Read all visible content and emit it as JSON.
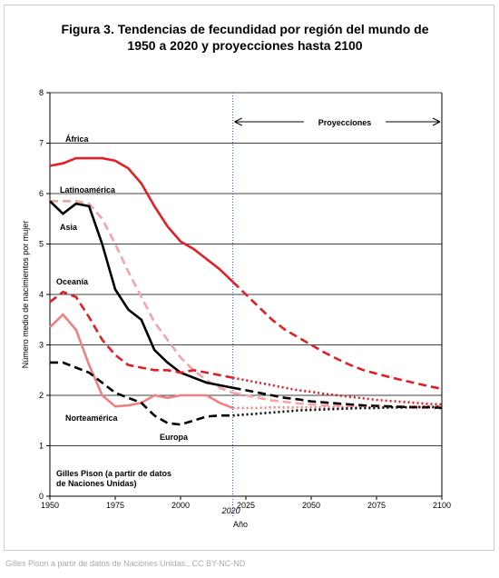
{
  "chart_data": {
    "type": "line",
    "title": [
      "Figura 3. Tendencias de fecundidad por región del mundo de",
      "1950 a 2020 y proyecciones hasta 2100"
    ],
    "y_label": "Número medio de nacimientos por mujer",
    "x_label": "Año",
    "source_note": [
      "Gilles Pison (a partir de datos",
      "de Naciones Unidas)"
    ],
    "projection_label": "Proyecciones",
    "marker_x": 2020,
    "caption": "Gilles Pison a partir de datos de Naciones Unidas., CC BY-NC-ND",
    "xlim": [
      1950,
      2100
    ],
    "xticks": [
      1950,
      1975,
      2000,
      2025,
      2050,
      2075,
      2100
    ],
    "ylim": [
      0,
      8
    ],
    "yticks": [
      0,
      1,
      2,
      3,
      4,
      5,
      6,
      7,
      8
    ],
    "grid": true,
    "x": [
      1950,
      1955,
      1960,
      1965,
      1970,
      1975,
      1980,
      1985,
      1990,
      1995,
      2000,
      2005,
      2010,
      2015,
      2020,
      2025,
      2030,
      2035,
      2040,
      2045,
      2050,
      2055,
      2060,
      2065,
      2070,
      2075,
      2080,
      2085,
      2090,
      2095,
      2100
    ],
    "series": [
      {
        "name": "África",
        "color": "#e41e26",
        "dash": "solid",
        "projection_dash": "dashed",
        "values": [
          6.55,
          6.6,
          6.7,
          6.7,
          6.7,
          6.65,
          6.5,
          6.2,
          5.75,
          5.35,
          5.05,
          4.9,
          4.7,
          4.5,
          4.25,
          4.0,
          3.75,
          3.5,
          3.3,
          3.15,
          3.0,
          2.85,
          2.72,
          2.6,
          2.5,
          2.43,
          2.36,
          2.3,
          2.24,
          2.18,
          2.13
        ]
      },
      {
        "name": "Latinoamérica",
        "color": "#f5a3a6",
        "dash": "dashed",
        "projection_dash": "dashed",
        "values": [
          5.85,
          5.85,
          5.85,
          5.8,
          5.5,
          5.0,
          4.45,
          3.95,
          3.45,
          3.1,
          2.75,
          2.5,
          2.3,
          2.15,
          2.05,
          2.0,
          1.95,
          1.9,
          1.87,
          1.84,
          1.82,
          1.8,
          1.8,
          1.79,
          1.79,
          1.78,
          1.78,
          1.78,
          1.78,
          1.78,
          1.78
        ]
      },
      {
        "name": "Asia",
        "color": "#000000",
        "dash": "solid",
        "projection_dash": "dashed",
        "values": [
          5.85,
          5.6,
          5.8,
          5.75,
          5.0,
          4.1,
          3.7,
          3.5,
          2.9,
          2.65,
          2.45,
          2.35,
          2.25,
          2.2,
          2.15,
          2.1,
          2.05,
          2.0,
          1.95,
          1.92,
          1.88,
          1.86,
          1.84,
          1.82,
          1.8,
          1.79,
          1.78,
          1.77,
          1.76,
          1.76,
          1.75
        ]
      },
      {
        "name": "Oceanía",
        "color": "#e41e26",
        "dash": "dashed",
        "projection_dash": "dotted",
        "values": [
          3.85,
          4.05,
          3.95,
          3.55,
          3.1,
          2.8,
          2.6,
          2.55,
          2.5,
          2.5,
          2.45,
          2.5,
          2.45,
          2.4,
          2.35,
          2.3,
          2.25,
          2.2,
          2.15,
          2.1,
          2.07,
          2.03,
          2.0,
          1.97,
          1.94,
          1.91,
          1.89,
          1.87,
          1.85,
          1.83,
          1.82
        ]
      },
      {
        "name": "Norteamérica",
        "color": "#f08080",
        "dash": "solid",
        "projection_dash": "dotted",
        "values": [
          3.35,
          3.6,
          3.3,
          2.6,
          2.0,
          1.78,
          1.8,
          1.85,
          2.0,
          1.95,
          2.0,
          2.0,
          2.0,
          1.85,
          1.75,
          1.75,
          1.75,
          1.76,
          1.76,
          1.76,
          1.76,
          1.76,
          1.76,
          1.76,
          1.76,
          1.76,
          1.76,
          1.76,
          1.76,
          1.76,
          1.76
        ]
      },
      {
        "name": "Europa",
        "color": "#000000",
        "dash": "dashed",
        "projection_dash": "dotted",
        "values": [
          2.65,
          2.65,
          2.55,
          2.45,
          2.25,
          2.05,
          1.95,
          1.85,
          1.6,
          1.45,
          1.42,
          1.5,
          1.58,
          1.6,
          1.6,
          1.62,
          1.64,
          1.66,
          1.68,
          1.7,
          1.71,
          1.72,
          1.73,
          1.74,
          1.75,
          1.75,
          1.76,
          1.76,
          1.77,
          1.77,
          1.77
        ]
      }
    ]
  }
}
